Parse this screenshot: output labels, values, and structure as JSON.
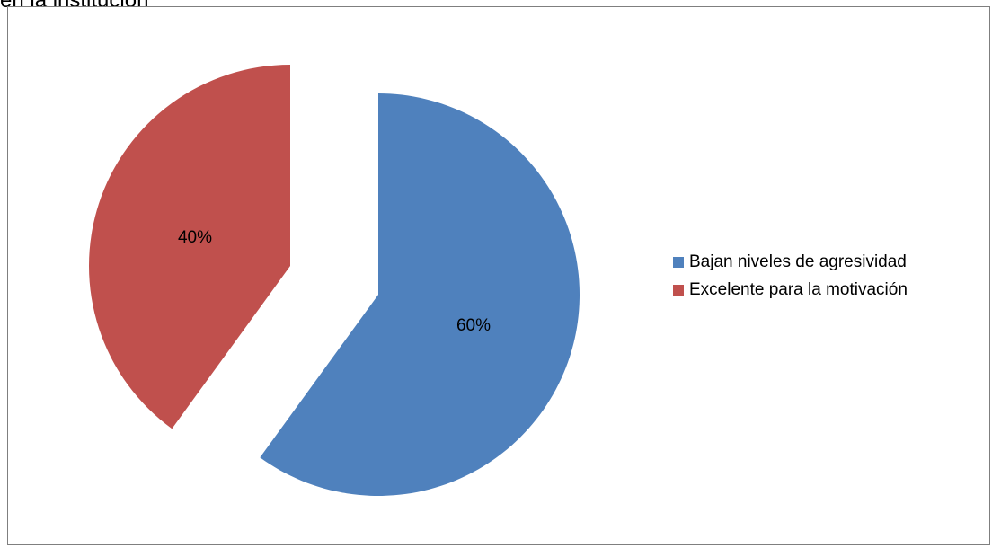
{
  "top_text": "en la institución",
  "chart_data": {
    "type": "pie",
    "categories": [
      "Bajan niveles de agresividad",
      "Excelente para la motivación"
    ],
    "values": [
      60,
      40
    ],
    "data_labels": [
      "60%",
      "40%"
    ],
    "colors": [
      "#4f81bd",
      "#c0504d"
    ],
    "exploded": true,
    "legend_position": "right"
  }
}
